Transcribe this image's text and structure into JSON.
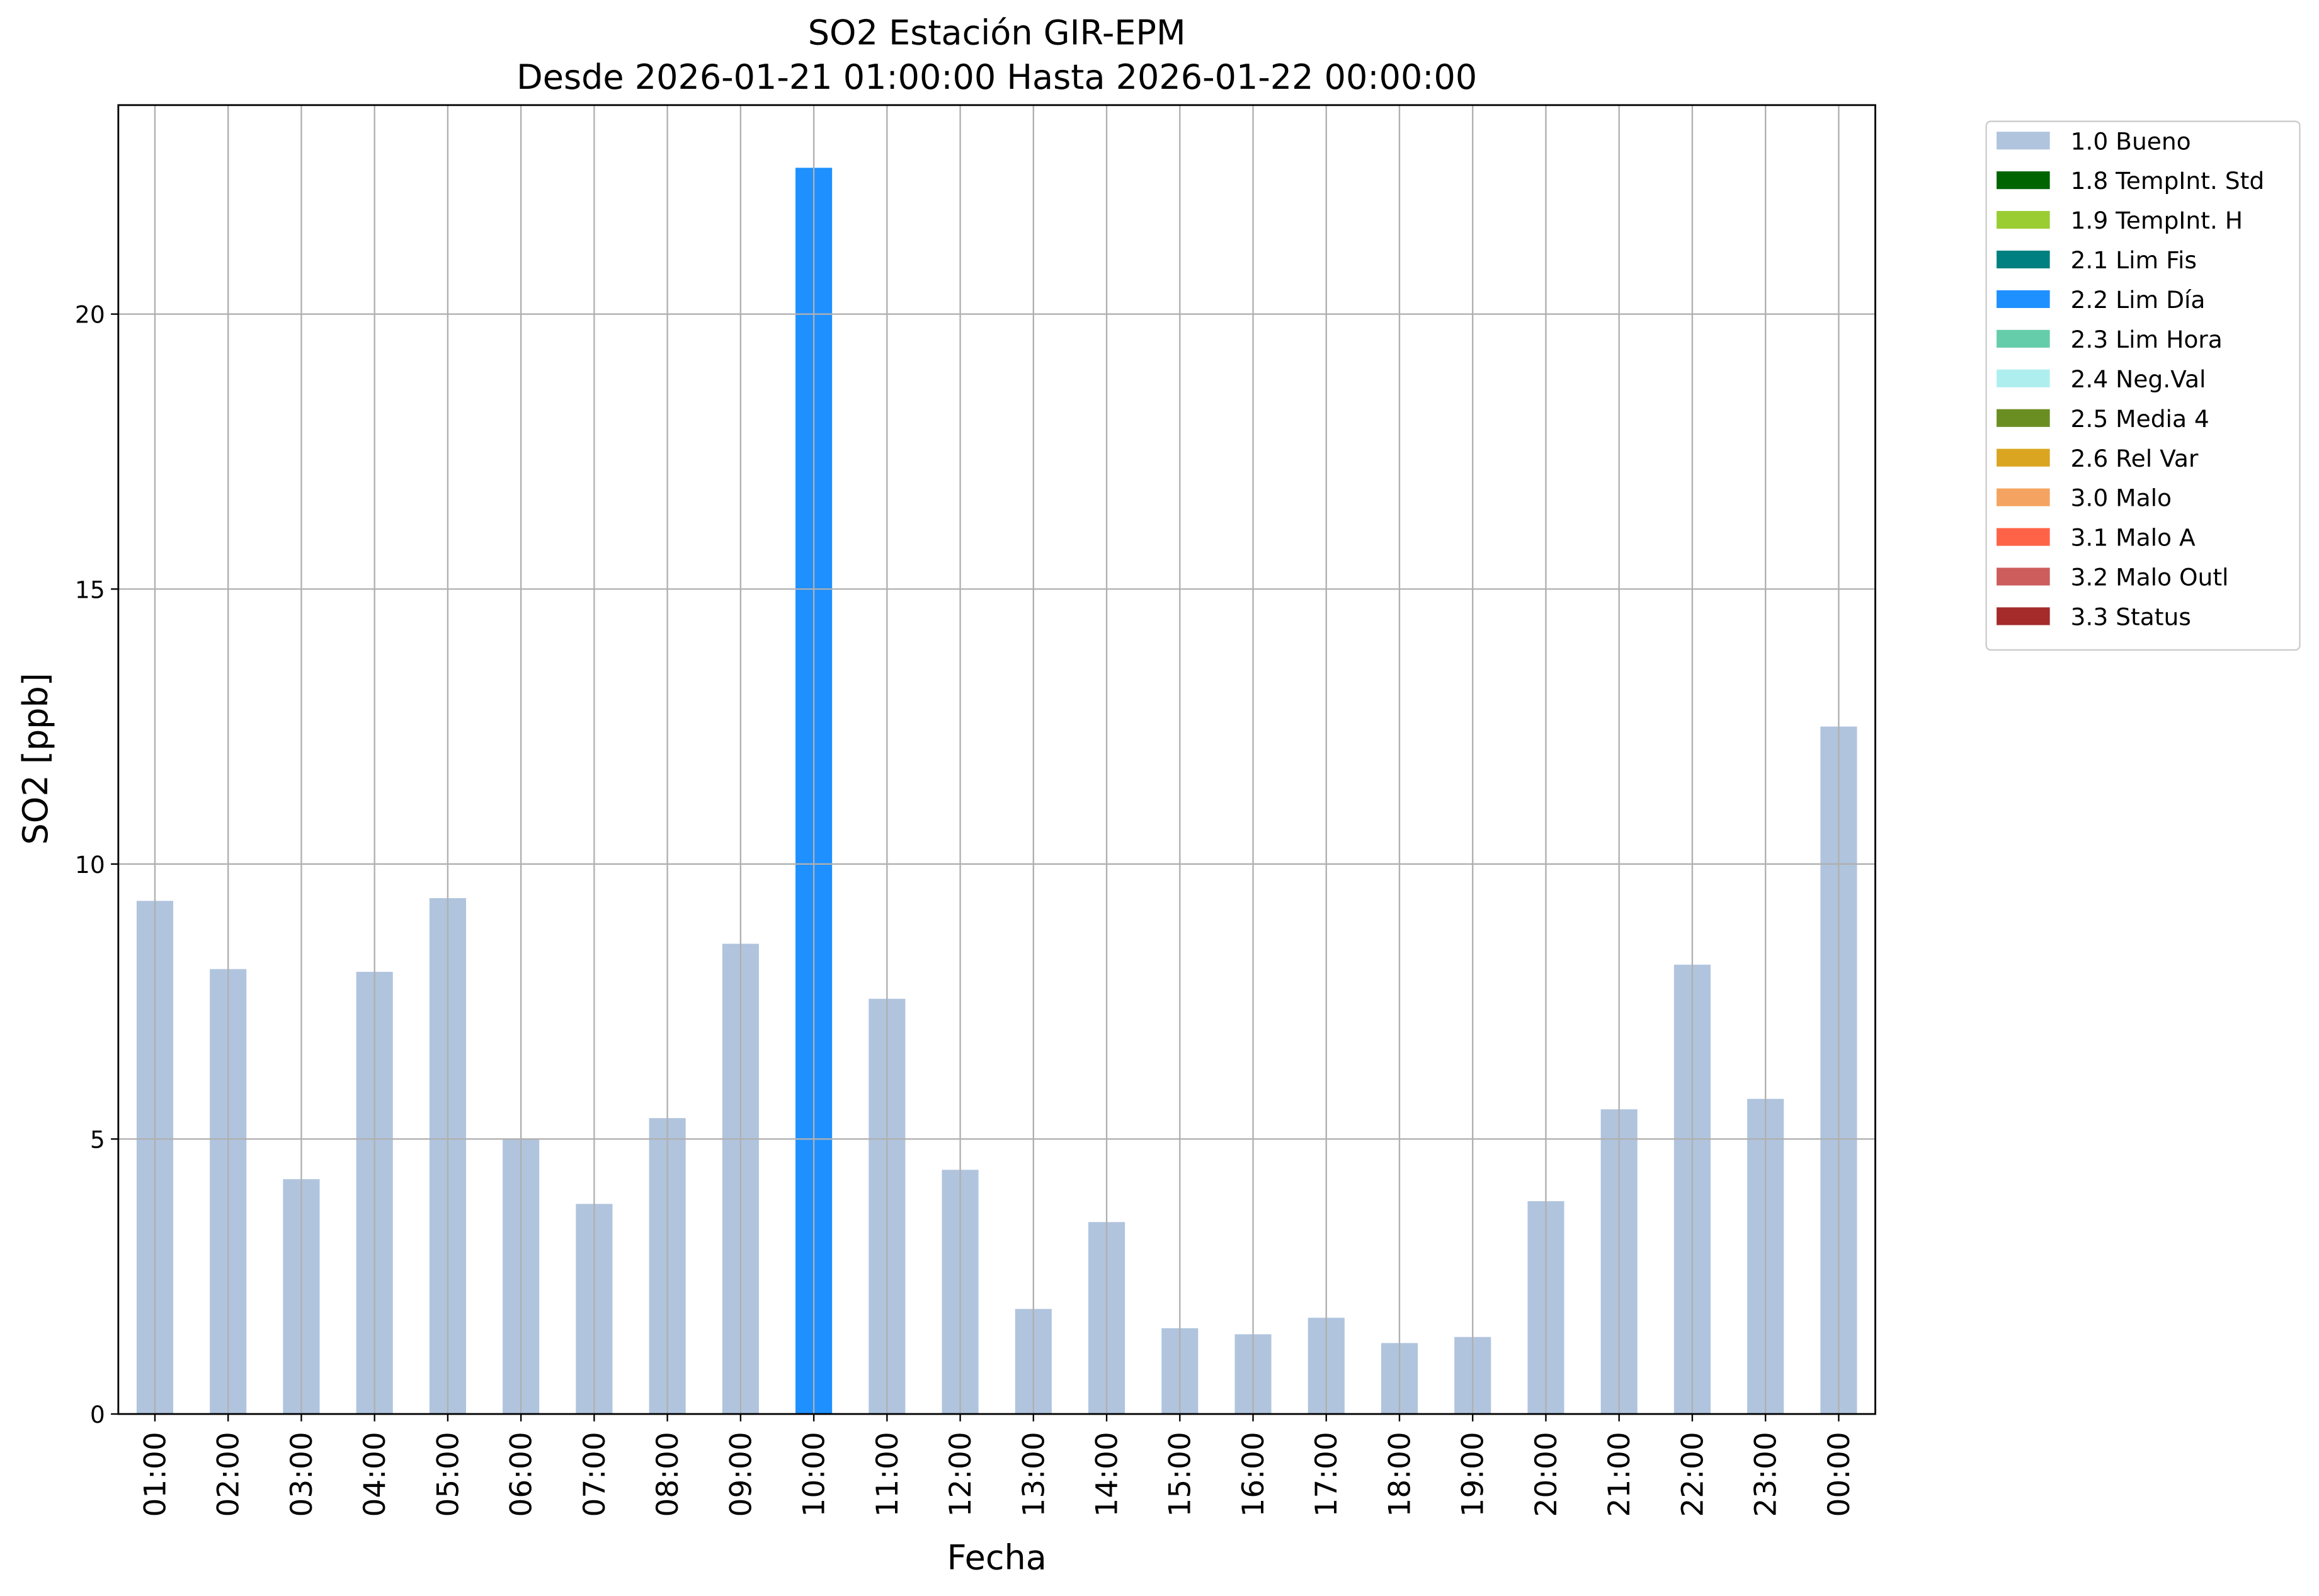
{
  "chart_data": {
    "type": "stacked_bar",
    "title": "SO2 Estación GIR-EPM",
    "subtitle": "Desde 2026-01-21 01:00:00 Hasta 2026-01-22 00:00:00",
    "x_label": "Fecha",
    "y_label": "SO2 [ppb]",
    "categories": [
      "01:00",
      "02:00",
      "03:00",
      "04:00",
      "05:00",
      "06:00",
      "07:00",
      "08:00",
      "09:00",
      "10:00",
      "11:00",
      "12:00",
      "13:00",
      "14:00",
      "15:00",
      "16:00",
      "17:00",
      "18:00",
      "19:00",
      "20:00",
      "21:00",
      "22:00",
      "23:00",
      "00:00"
    ],
    "series": [
      {
        "name": "1.0 Bueno",
        "color": "#b0c4de",
        "values": [
          9.33,
          8.09,
          4.27,
          8.04,
          9.38,
          5.0,
          3.82,
          5.38,
          8.55,
          null,
          7.55,
          4.44,
          1.91,
          3.49,
          1.56,
          1.45,
          1.75,
          1.29,
          1.4,
          3.87,
          5.54,
          8.17,
          5.73,
          12.5
        ]
      },
      {
        "name": "1.8 TempInt. Std",
        "color": "#006400",
        "values": [
          null,
          null,
          null,
          null,
          null,
          null,
          null,
          null,
          null,
          null,
          null,
          null,
          null,
          null,
          null,
          null,
          null,
          null,
          null,
          null,
          null,
          null,
          null,
          null
        ]
      },
      {
        "name": "1.9 TempInt. H",
        "color": "#9acd32",
        "values": [
          null,
          null,
          null,
          null,
          null,
          null,
          null,
          null,
          null,
          null,
          null,
          null,
          null,
          null,
          null,
          null,
          null,
          null,
          null,
          null,
          null,
          null,
          null,
          null
        ]
      },
      {
        "name": "2.1 Lim Fis",
        "color": "#008080",
        "values": [
          null,
          null,
          null,
          null,
          null,
          null,
          null,
          null,
          null,
          null,
          null,
          null,
          null,
          null,
          null,
          null,
          null,
          null,
          null,
          null,
          null,
          null,
          null,
          null
        ]
      },
      {
        "name": "2.2 Lim Día",
        "color": "#1e90ff",
        "values": [
          null,
          null,
          null,
          null,
          null,
          null,
          null,
          null,
          null,
          22.66,
          null,
          null,
          null,
          null,
          null,
          null,
          null,
          null,
          null,
          null,
          null,
          null,
          null,
          null
        ]
      },
      {
        "name": "2.3 Lim Hora",
        "color": "#66cdaa",
        "values": [
          null,
          null,
          null,
          null,
          null,
          null,
          null,
          null,
          null,
          null,
          null,
          null,
          null,
          null,
          null,
          null,
          null,
          null,
          null,
          null,
          null,
          null,
          null,
          null
        ]
      },
      {
        "name": "2.4 Neg.Val",
        "color": "#afeeee",
        "values": [
          null,
          null,
          null,
          null,
          null,
          null,
          null,
          null,
          null,
          null,
          null,
          null,
          null,
          null,
          null,
          null,
          null,
          null,
          null,
          null,
          null,
          null,
          null,
          null
        ]
      },
      {
        "name": "2.5 Media 4",
        "color": "#6b8e23",
        "values": [
          null,
          null,
          null,
          null,
          null,
          null,
          null,
          null,
          null,
          null,
          null,
          null,
          null,
          null,
          null,
          null,
          null,
          null,
          null,
          null,
          null,
          null,
          null,
          null
        ]
      },
      {
        "name": "2.6 Rel Var",
        "color": "#daa520",
        "values": [
          null,
          null,
          null,
          null,
          null,
          null,
          null,
          null,
          null,
          null,
          null,
          null,
          null,
          null,
          null,
          null,
          null,
          null,
          null,
          null,
          null,
          null,
          null,
          null
        ]
      },
      {
        "name": "3.0 Malo",
        "color": "#f4a460",
        "values": [
          null,
          null,
          null,
          null,
          null,
          null,
          null,
          null,
          null,
          null,
          null,
          null,
          null,
          null,
          null,
          null,
          null,
          null,
          null,
          null,
          null,
          null,
          null,
          null
        ]
      },
      {
        "name": "3.1 Malo A",
        "color": "#ff6347",
        "values": [
          null,
          null,
          null,
          null,
          null,
          null,
          null,
          null,
          null,
          null,
          null,
          null,
          null,
          null,
          null,
          null,
          null,
          null,
          null,
          null,
          null,
          null,
          null,
          null
        ]
      },
      {
        "name": "3.2 Malo Outl",
        "color": "#cd5c5c",
        "values": [
          null,
          null,
          null,
          null,
          null,
          null,
          null,
          null,
          null,
          null,
          null,
          null,
          null,
          null,
          null,
          null,
          null,
          null,
          null,
          null,
          null,
          null,
          null,
          null
        ]
      },
      {
        "name": "3.3 Status",
        "color": "#a52a2a",
        "values": [
          null,
          null,
          null,
          null,
          null,
          null,
          null,
          null,
          null,
          null,
          null,
          null,
          null,
          null,
          null,
          null,
          null,
          null,
          null,
          null,
          null,
          null,
          null,
          null
        ]
      }
    ],
    "ylim": [
      0,
      23.8
    ],
    "yticks": [
      0,
      5,
      10,
      15,
      20
    ],
    "grid": true,
    "legend": "outside-upper-right"
  }
}
